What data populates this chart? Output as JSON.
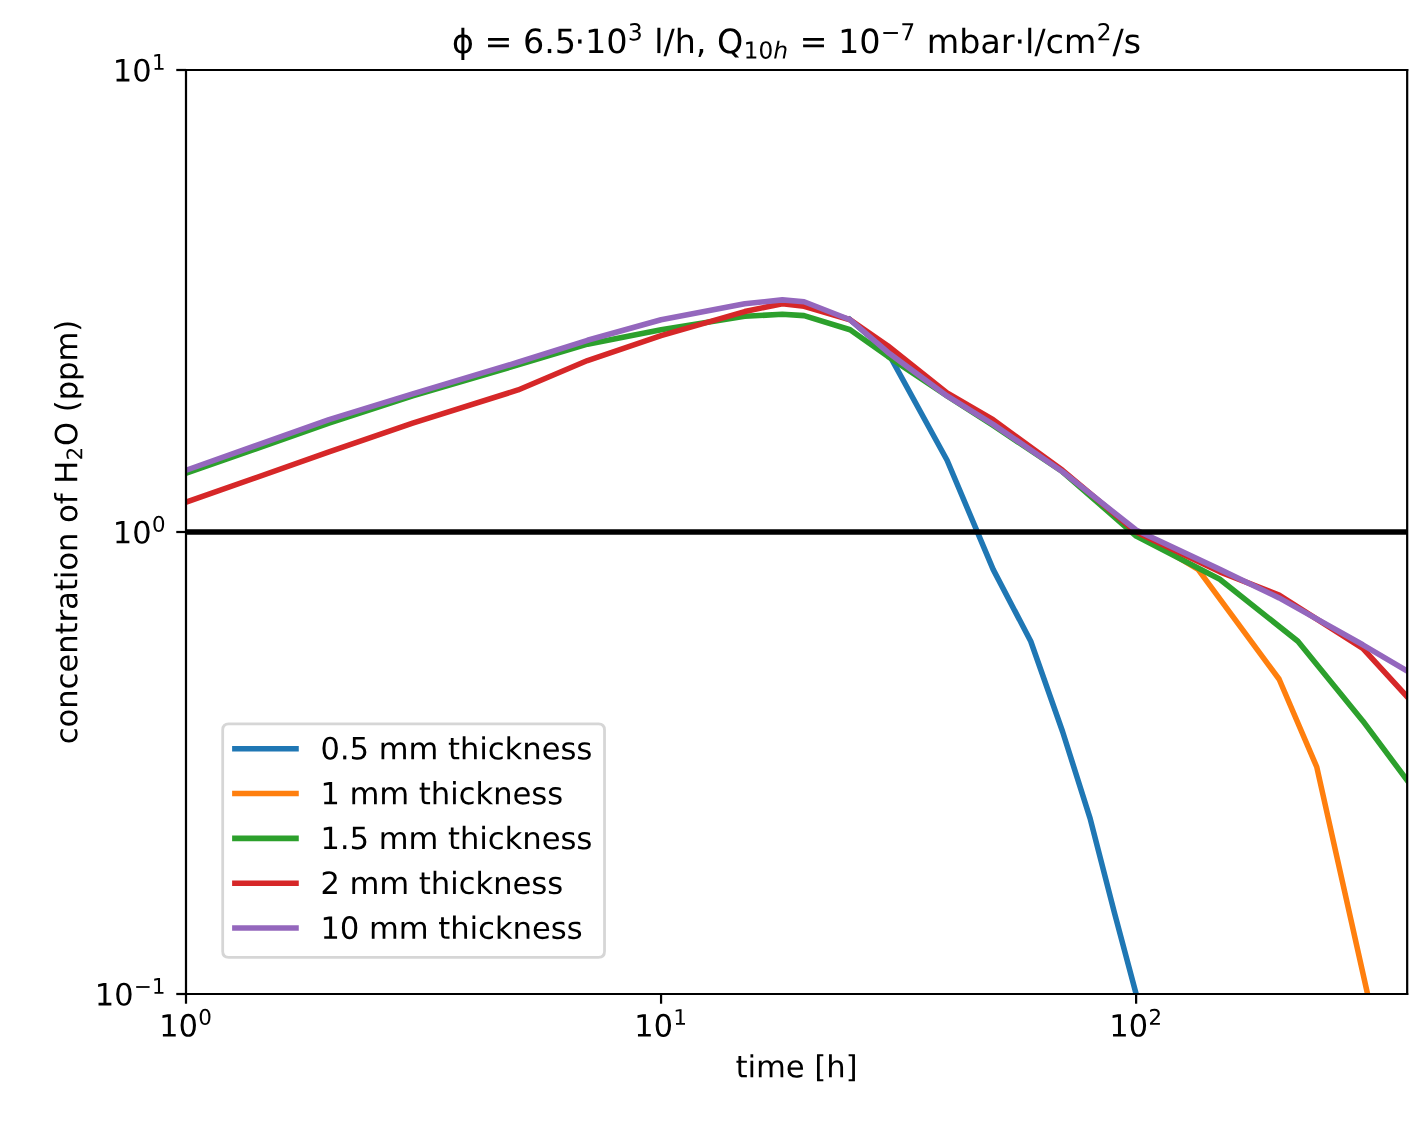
{
  "chart_data": {
    "type": "line",
    "title": "ϕ = 6.5·10$^{3}$ l/h, Q$_{10h}$ = 10$^{−7}$ mbar·l/cm$^{2}$/s",
    "xlabel": "time [h]",
    "ylabel": "concentration of H$_{2}$O (ppm)",
    "log": "xy",
    "grid": false,
    "legend": "bottom left",
    "line_style": "solid",
    "marker": "none",
    "xlim": [
      1,
      372
    ],
    "xticks": [
      {
        "value": 1,
        "label": "10$^{0}$"
      },
      {
        "value": 10,
        "label": "10$^{1}$"
      },
      {
        "value": 100,
        "label": "10$^{2}$"
      }
    ],
    "ylim": [
      0.1,
      10
    ],
    "yticks": [
      {
        "value": 0.1,
        "label": "10$^{−1}$"
      },
      {
        "value": 1,
        "label": "10$^{0}$"
      },
      {
        "value": 10,
        "label": "10$^{1}$"
      }
    ],
    "ref_lines": [
      {
        "axis": "y",
        "value": 1,
        "color": "#000000"
      }
    ],
    "series": [
      {
        "name": "0.5 mm thickness",
        "color": "#1f77b4",
        "x": [
          25,
          30,
          40,
          50,
          60,
          70,
          80,
          90,
          100
        ],
        "values": [
          2.88,
          2.45,
          1.43,
          0.83,
          0.58,
          0.37,
          0.24,
          0.15,
          0.1
        ]
      },
      {
        "name": "1 mm thickness",
        "color": "#ff7f0e",
        "x": [
          100,
          135,
          200,
          240,
          307
        ],
        "values": [
          1.0,
          0.83,
          0.48,
          0.31,
          0.1
        ]
      },
      {
        "name": "1.5 mm thickness",
        "color": "#2ca02c",
        "x": [
          1,
          2,
          3,
          5,
          7,
          10,
          15,
          18,
          20,
          25,
          30,
          40,
          50,
          70,
          100,
          150,
          219,
          300,
          372
        ],
        "values": [
          1.34,
          1.72,
          1.97,
          2.3,
          2.55,
          2.74,
          2.93,
          2.96,
          2.94,
          2.74,
          2.4,
          1.97,
          1.7,
          1.35,
          0.98,
          0.79,
          0.58,
          0.39,
          0.29
        ]
      },
      {
        "name": "2 mm thickness",
        "color": "#d62728",
        "x": [
          1,
          2,
          3,
          5,
          7,
          10,
          15,
          18,
          20,
          25,
          30,
          40,
          50,
          70,
          100,
          150,
          200,
          300,
          372
        ],
        "values": [
          1.16,
          1.49,
          1.72,
          2.03,
          2.35,
          2.66,
          3.0,
          3.12,
          3.08,
          2.88,
          2.53,
          2.0,
          1.75,
          1.36,
          1.0,
          0.82,
          0.73,
          0.56,
          0.44
        ]
      },
      {
        "name": "10 mm thickness",
        "color": "#9467bd",
        "x": [
          1,
          2,
          3,
          5,
          7,
          10,
          15,
          18,
          20,
          25,
          30,
          40,
          50,
          70,
          100,
          150,
          200,
          300,
          372
        ],
        "values": [
          1.36,
          1.75,
          1.99,
          2.33,
          2.6,
          2.88,
          3.12,
          3.18,
          3.15,
          2.88,
          2.45,
          1.97,
          1.71,
          1.35,
          1.01,
          0.83,
          0.72,
          0.57,
          0.5
        ]
      }
    ]
  }
}
